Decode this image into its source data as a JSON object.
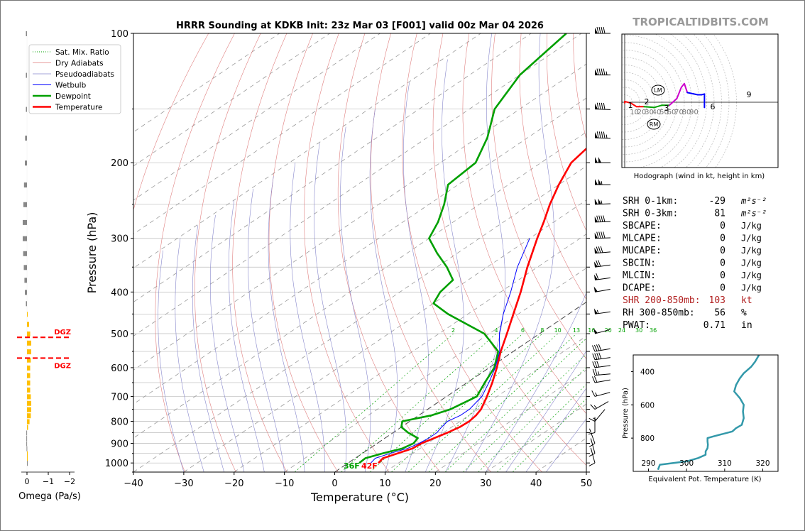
{
  "title": "HRRR Sounding at KDKB Init: 23z Mar 03 [F001] valid 00z Mar 04 2026",
  "watermark": "TROPICALTIDBITS.COM",
  "colors": {
    "temperature": "#ff0000",
    "dewpoint": "#00a000",
    "wetbulb": "#0000ff",
    "dgz": "#ff0000",
    "omega_pos": "#ffbf00",
    "omega_neg": "#888888"
  },
  "chart_data": [
    {
      "type": "line",
      "name": "skew-t",
      "xlabel": "Temperature (°C)",
      "ylabel": "Pressure (hPa)",
      "xlim": [
        -40,
        50
      ],
      "ylim": [
        1050,
        100
      ],
      "y_scale": "log",
      "x_ticks": [
        "−40",
        "−30",
        "−20",
        "−10",
        "0",
        "10",
        "20",
        "30",
        "40",
        "50"
      ],
      "y_ticks": [
        "100",
        "200",
        "300",
        "400",
        "500",
        "600",
        "700",
        "800",
        "900",
        "1000"
      ],
      "legend_position": "top-left",
      "legend": [
        "Sat. Mix. Ratio",
        "Dry Adiabats",
        "Pseudoadiabats",
        "Wetbulb",
        "Dewpoint",
        "Temperature"
      ],
      "mixing_ratio_labels": [
        "2",
        "4",
        "6",
        "8",
        "10",
        "13",
        "16",
        "20",
        "24",
        "30",
        "36"
      ],
      "surface_labels": {
        "dewpoint": "36F",
        "temperature": "42F"
      },
      "series": [
        {
          "name": "Temperature",
          "points": [
            [
              1000,
              6
            ],
            [
              975,
              5.5
            ],
            [
              950,
              7
            ],
            [
              925,
              8.5
            ],
            [
              900,
              8.8
            ],
            [
              875,
              9.8
            ],
            [
              850,
              10.8
            ],
            [
              825,
              11.6
            ],
            [
              800,
              11.8
            ],
            [
              775,
              11.4
            ],
            [
              750,
              10.6
            ],
            [
              700,
              8
            ],
            [
              650,
              5
            ],
            [
              600,
              1.5
            ],
            [
              550,
              -2.5
            ],
            [
              500,
              -6.5
            ],
            [
              450,
              -11
            ],
            [
              400,
              -16
            ],
            [
              350,
              -22
            ],
            [
              300,
              -28.5
            ],
            [
              275,
              -32
            ],
            [
              250,
              -36
            ],
            [
              225,
              -40
            ],
            [
              200,
              -44
            ],
            [
              175,
              -46
            ],
            [
              150,
              -51
            ],
            [
              125,
              -58
            ],
            [
              100,
              -65
            ]
          ]
        },
        {
          "name": "Dewpoint",
          "points": [
            [
              1000,
              2.2
            ],
            [
              975,
              2
            ],
            [
              950,
              4
            ],
            [
              925,
              6.5
            ],
            [
              900,
              7.2
            ],
            [
              875,
              6.5
            ],
            [
              850,
              3
            ],
            [
              825,
              0
            ],
            [
              800,
              -1.5
            ],
            [
              775,
              2.5
            ],
            [
              750,
              4.5
            ],
            [
              700,
              6
            ],
            [
              650,
              3.5
            ],
            [
              600,
              1
            ],
            [
              550,
              -3
            ],
            [
              500,
              -11
            ],
            [
              450,
              -24
            ],
            [
              425,
              -30
            ],
            [
              400,
              -32
            ],
            [
              375,
              -33
            ],
            [
              350,
              -38
            ],
            [
              325,
              -44
            ],
            [
              300,
              -50
            ],
            [
              275,
              -53
            ],
            [
              250,
              -57
            ],
            [
              225,
              -62
            ],
            [
              200,
              -63
            ],
            [
              175,
              -68
            ],
            [
              150,
              -75
            ],
            [
              125,
              -80
            ],
            [
              100,
              -83
            ]
          ]
        },
        {
          "name": "Wetbulb",
          "points": [
            [
              1000,
              4.5
            ],
            [
              975,
              4
            ],
            [
              950,
              5.5
            ],
            [
              925,
              7.5
            ],
            [
              900,
              8.3
            ],
            [
              875,
              8.7
            ],
            [
              850,
              8.7
            ],
            [
              825,
              8
            ],
            [
              800,
              7.5
            ],
            [
              775,
              8.3
            ],
            [
              750,
              8.3
            ],
            [
              700,
              7
            ],
            [
              650,
              4.3
            ],
            [
              600,
              1.2
            ],
            [
              550,
              -2.7
            ],
            [
              500,
              -8
            ],
            [
              450,
              -13
            ],
            [
              400,
              -18
            ],
            [
              350,
              -24
            ],
            [
              300,
              -30
            ]
          ]
        }
      ]
    },
    {
      "type": "bar",
      "name": "omega",
      "xlabel": "Omega (Pa/s)",
      "x_ticks": [
        "0",
        "−1",
        "−2"
      ],
      "dgz_label": "DGZ",
      "dgz_levels": [
        510,
        570
      ],
      "values": [
        [
          100,
          0.05
        ],
        [
          125,
          0.05
        ],
        [
          150,
          0.05
        ],
        [
          175,
          0.09
        ],
        [
          200,
          0.1
        ],
        [
          225,
          0.14
        ],
        [
          250,
          0.17
        ],
        [
          275,
          0.2
        ],
        [
          300,
          0.2
        ],
        [
          325,
          0.18
        ],
        [
          350,
          0.15
        ],
        [
          375,
          0.12
        ],
        [
          400,
          0.1
        ],
        [
          425,
          0.05
        ],
        [
          450,
          -0.03
        ],
        [
          475,
          -0.1
        ],
        [
          500,
          -0.15
        ],
        [
          525,
          -0.2
        ],
        [
          550,
          -0.2
        ],
        [
          575,
          -0.18
        ],
        [
          600,
          -0.15
        ],
        [
          625,
          -0.15
        ],
        [
          650,
          -0.15
        ],
        [
          675,
          -0.15
        ],
        [
          700,
          -0.18
        ],
        [
          725,
          -0.2
        ],
        [
          750,
          -0.2
        ],
        [
          775,
          -0.18
        ],
        [
          800,
          -0.12
        ],
        [
          825,
          -0.05
        ],
        [
          850,
          0.03
        ],
        [
          875,
          0.03
        ],
        [
          900,
          0.03
        ],
        [
          925,
          0.02
        ],
        [
          950,
          -0.01
        ],
        [
          975,
          -0.01
        ],
        [
          1000,
          0
        ]
      ]
    },
    {
      "type": "line",
      "name": "hodograph",
      "xlabel": "Hodograph (wind in kt, height in km)",
      "ring_labels": [
        "10",
        "20",
        "30",
        "40",
        "50",
        "60",
        "70",
        "80",
        "90"
      ],
      "height_labels": [
        "1",
        "2",
        "3",
        "6",
        "9"
      ],
      "motion_labels": [
        "LM",
        "RM"
      ],
      "points": [
        [
          0,
          -1
        ],
        [
          0,
          1
        ],
        [
          8,
          -1
        ],
        [
          16,
          -6
        ],
        [
          26,
          -6
        ],
        [
          40,
          -7
        ],
        [
          50,
          -4
        ],
        [
          60,
          -4
        ],
        [
          70,
          5
        ],
        [
          76,
          20
        ],
        [
          80,
          25
        ],
        [
          84,
          13
        ],
        [
          98,
          10
        ],
        [
          103,
          10
        ],
        [
          107,
          11
        ],
        [
          107,
          -7
        ]
      ]
    },
    {
      "type": "line",
      "name": "theta-e",
      "xlabel": "Equivalent Pot. Temperature (K)",
      "ylabel": "Pressure (hPa)",
      "xlim": [
        286,
        324
      ],
      "ylim": [
        1000,
        300
      ],
      "x_ticks": [
        "290",
        "300",
        "310",
        "320"
      ],
      "y_ticks": [
        "400",
        "600",
        "800"
      ],
      "values": [
        [
          990,
          292.5
        ],
        [
          960,
          293
        ],
        [
          940,
          300
        ],
        [
          920,
          303
        ],
        [
          900,
          305
        ],
        [
          880,
          305
        ],
        [
          860,
          305.5
        ],
        [
          840,
          305.6
        ],
        [
          820,
          305.5
        ],
        [
          800,
          305.5
        ],
        [
          790,
          307
        ],
        [
          760,
          312
        ],
        [
          740,
          313
        ],
        [
          720,
          314.5
        ],
        [
          680,
          315
        ],
        [
          640,
          314.8
        ],
        [
          600,
          315
        ],
        [
          560,
          314
        ],
        [
          520,
          312.5
        ],
        [
          480,
          313
        ],
        [
          440,
          314
        ],
        [
          410,
          315
        ],
        [
          370,
          317
        ],
        [
          340,
          318
        ],
        [
          300,
          319
        ]
      ]
    }
  ],
  "indices": [
    {
      "label": "SRH 0-1km:",
      "value": "-29",
      "unit": "m²s⁻²"
    },
    {
      "label": "SRH 0-3km:",
      "value": "81",
      "unit": "m²s⁻²"
    },
    {
      "label": "SBCAPE:",
      "value": "0",
      "unit": "J/kg"
    },
    {
      "label": "MLCAPE:",
      "value": "0",
      "unit": "J/kg"
    },
    {
      "label": "MUCAPE:",
      "value": "0",
      "unit": "J/kg"
    },
    {
      "label": "SBCIN:",
      "value": "0",
      "unit": "J/kg"
    },
    {
      "label": "MLCIN:",
      "value": "0",
      "unit": "J/kg"
    },
    {
      "label": "DCAPE:",
      "value": "0",
      "unit": "J/kg"
    },
    {
      "label": "SHR 200-850mb:",
      "value": "103",
      "unit": "kt",
      "highlight": "#b22222"
    },
    {
      "label": "RH 300-850mb:",
      "value": "56",
      "unit": "%"
    },
    {
      "label": "PWAT:",
      "value": "0.71",
      "unit": "in"
    }
  ],
  "wind_barbs": [
    [
      100,
      270,
      90
    ],
    [
      125,
      270,
      95
    ],
    [
      150,
      272,
      90
    ],
    [
      175,
      272,
      95
    ],
    [
      200,
      270,
      100
    ],
    [
      225,
      270,
      105
    ],
    [
      250,
      268,
      105
    ],
    [
      275,
      268,
      90
    ],
    [
      300,
      268,
      90
    ],
    [
      325,
      265,
      80
    ],
    [
      350,
      262,
      70
    ],
    [
      375,
      262,
      60
    ],
    [
      400,
      260,
      50
    ],
    [
      450,
      262,
      55
    ],
    [
      500,
      255,
      50
    ],
    [
      550,
      260,
      40
    ],
    [
      575,
      262,
      40
    ],
    [
      600,
      262,
      30
    ],
    [
      625,
      265,
      25
    ],
    [
      650,
      260,
      20
    ],
    [
      700,
      255,
      15
    ],
    [
      750,
      240,
      15
    ],
    [
      800,
      220,
      15
    ],
    [
      850,
      180,
      12
    ],
    [
      900,
      160,
      10
    ],
    [
      950,
      165,
      12
    ],
    [
      1000,
      165,
      10
    ]
  ]
}
